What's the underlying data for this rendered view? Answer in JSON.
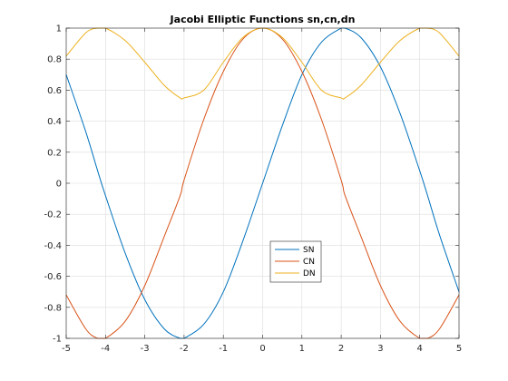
{
  "chart_data": {
    "type": "line",
    "title": "Jacobi Elliptic Functions sn,cn,dn",
    "xlabel": "",
    "ylabel": "",
    "xlim": [
      -5,
      5
    ],
    "ylim": [
      -1,
      1
    ],
    "xticks": [
      -5,
      -4,
      -3,
      -2,
      -1,
      0,
      1,
      2,
      3,
      4,
      5
    ],
    "yticks": [
      -1,
      -0.8,
      -0.6,
      -0.4,
      -0.2,
      0,
      0.2,
      0.4,
      0.6,
      0.8,
      1
    ],
    "xtick_labels": [
      "-5",
      "-4",
      "-3",
      "-2",
      "-1",
      "0",
      "1",
      "2",
      "3",
      "4",
      "5"
    ],
    "ytick_labels": [
      "-1",
      "-0.8",
      "-0.6",
      "-0.4",
      "-0.2",
      "0",
      "0.2",
      "0.4",
      "0.6",
      "0.8",
      "1"
    ],
    "grid": true,
    "legend_position": "center-bottom",
    "x": [
      -5,
      -4.5,
      -4.2,
      -4,
      -3.5,
      -3,
      -2.5,
      -2.1,
      -2,
      -1.5,
      -1,
      -0.5,
      0,
      0.5,
      1,
      1.5,
      2,
      2.1,
      2.5,
      3,
      3.5,
      4,
      4.2,
      4.5,
      5
    ],
    "series": [
      {
        "name": "SN",
        "color": "#0072BD",
        "values": [
          0.7,
          0.33,
          0.08,
          -0.08,
          -0.45,
          -0.75,
          -0.94,
          -1,
          -1,
          -0.91,
          -0.7,
          -0.37,
          0,
          0.37,
          0.7,
          0.91,
          1,
          1,
          0.94,
          0.75,
          0.45,
          0.08,
          -0.08,
          -0.33,
          -0.7
        ]
      },
      {
        "name": "CN",
        "color": "#D95319",
        "values": [
          -0.72,
          -0.94,
          -1,
          -1,
          -0.89,
          -0.66,
          -0.34,
          -0.08,
          0.02,
          0.41,
          0.72,
          0.93,
          1,
          0.93,
          0.72,
          0.41,
          0.02,
          -0.08,
          -0.34,
          -0.66,
          -0.89,
          -1,
          -1,
          -0.94,
          -0.72
        ]
      },
      {
        "name": "DN",
        "color": "#EDB120",
        "values": [
          0.82,
          0.97,
          1,
          1,
          0.92,
          0.78,
          0.63,
          0.55,
          0.55,
          0.6,
          0.78,
          0.94,
          1,
          0.94,
          0.78,
          0.6,
          0.55,
          0.55,
          0.63,
          0.78,
          0.92,
          1,
          1,
          0.97,
          0.82
        ]
      }
    ]
  }
}
